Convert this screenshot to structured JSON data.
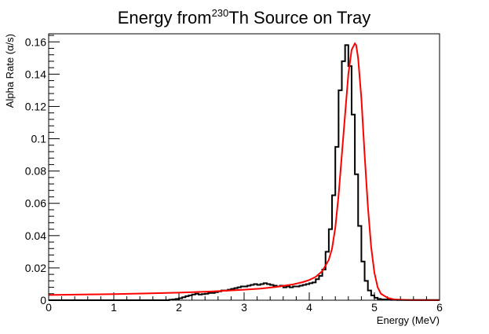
{
  "chart_data": {
    "type": "line",
    "title": {
      "prefix": "Energy from",
      "superscript": "230",
      "suffix": "Th Source on Tray"
    },
    "xlabel": "Energy (MeV)",
    "ylabel": "Alpha Rate (α/s)",
    "xlim": [
      0,
      6
    ],
    "ylim": [
      0,
      0.165
    ],
    "x_ticks": [
      0,
      1,
      2,
      3,
      4,
      5,
      6
    ],
    "y_ticks": [
      0,
      0.02,
      0.04,
      0.06,
      0.08,
      0.1,
      0.12,
      0.14,
      0.16
    ],
    "x_tick_labels": [
      "0",
      "1",
      "2",
      "3",
      "4",
      "5",
      "6"
    ],
    "y_tick_labels": [
      "0",
      "0.02",
      "0.04",
      "0.06",
      "0.08",
      "0.1",
      "0.12",
      "0.14",
      "0.16"
    ],
    "grid": false,
    "legend": "none",
    "series": [
      {
        "kind": "histogram",
        "color": "#000000",
        "bin_edges_start": 0.0,
        "bin_width": 0.05,
        "values": [
          0,
          0,
          0,
          0,
          0,
          0,
          0,
          0,
          0,
          0,
          0,
          0,
          0,
          0,
          0,
          0,
          0,
          0,
          0,
          0,
          0,
          0,
          0,
          0,
          0,
          0,
          0,
          0,
          0,
          0,
          0,
          0,
          0,
          0,
          0,
          0,
          0,
          0.0003,
          0.0005,
          0.0008,
          0.0012,
          0.0018,
          0.0025,
          0.003,
          0.0035,
          0.004,
          0.0035,
          0.0038,
          0.004,
          0.0045,
          0.0045,
          0.005,
          0.0055,
          0.006,
          0.006,
          0.0065,
          0.007,
          0.0075,
          0.008,
          0.0085,
          0.0085,
          0.009,
          0.0095,
          0.01,
          0.0095,
          0.01,
          0.0105,
          0.01,
          0.0095,
          0.009,
          0.0085,
          0.009,
          0.008,
          0.0085,
          0.008,
          0.0085,
          0.0085,
          0.009,
          0.0095,
          0.01,
          0.0105,
          0.011,
          0.013,
          0.015,
          0.019,
          0.03,
          0.044,
          0.065,
          0.095,
          0.13,
          0.148,
          0.158,
          0.145,
          0.115,
          0.078,
          0.046,
          0.024,
          0.012,
          0.006,
          0.003,
          0.0015,
          0.0008,
          0.0005,
          0.0004,
          0.0003,
          0.0002,
          0.0002,
          0.0001,
          0.0001,
          0.0001,
          0.0001,
          0.0001,
          0.0001,
          0.0001,
          0.0001,
          0.0001,
          0.0001,
          0.0001,
          0.0001,
          0.0001
        ]
      },
      {
        "kind": "fit",
        "color": "#ff0000",
        "x": [
          0,
          0.5,
          1.0,
          1.5,
          2.0,
          2.5,
          3.0,
          3.25,
          3.5,
          3.75,
          3.9,
          4.0,
          4.1,
          4.2,
          4.3,
          4.35,
          4.4,
          4.45,
          4.5,
          4.55,
          4.6,
          4.65,
          4.7,
          4.72,
          4.75,
          4.8,
          4.85,
          4.9,
          4.95,
          5.0,
          5.05,
          5.1,
          5.2,
          5.3,
          5.5,
          6.0
        ],
        "y": [
          0.0032,
          0.0035,
          0.0038,
          0.0042,
          0.0047,
          0.0054,
          0.0065,
          0.0072,
          0.0083,
          0.0098,
          0.0112,
          0.0125,
          0.0145,
          0.018,
          0.025,
          0.032,
          0.045,
          0.065,
          0.09,
          0.115,
          0.14,
          0.155,
          0.159,
          0.158,
          0.15,
          0.125,
          0.09,
          0.058,
          0.033,
          0.017,
          0.008,
          0.004,
          0.0015,
          0.0005,
          0.0001,
          0.0
        ]
      }
    ]
  }
}
